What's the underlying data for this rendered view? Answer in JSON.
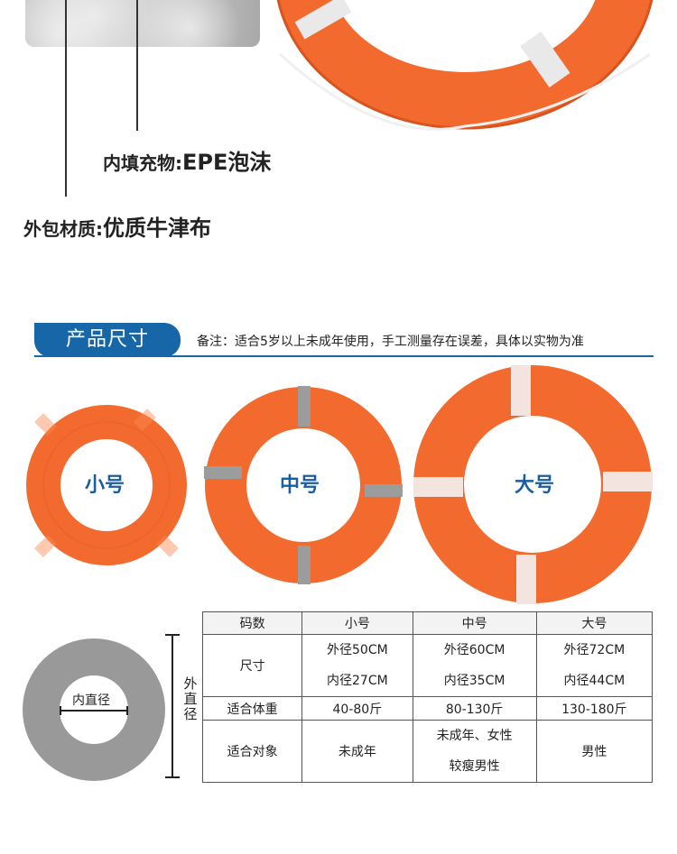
{
  "top": {
    "filler_label": "内填充物:",
    "filler_value": "EPE泡沫",
    "outer_label": "外包材质:",
    "outer_value": "优质牛津布"
  },
  "section": {
    "title": "产品尺寸",
    "note": "备注：适合5岁以上未成年使用，手工测量存在误差，具体以实物为准"
  },
  "rings": [
    {
      "label": "小号"
    },
    {
      "label": "中号"
    },
    {
      "label": "大号"
    }
  ],
  "diagram": {
    "inner_label": "内直径",
    "outer_label": "外直径"
  },
  "table": {
    "headers": [
      "码数",
      "小号",
      "中号",
      "大号"
    ],
    "size_label": "尺寸",
    "outer": [
      "外径50CM",
      "外径60CM",
      "外径72CM"
    ],
    "inner": [
      "内径27CM",
      "内径35CM",
      "内径44CM"
    ],
    "weight_label": "适合体重",
    "weight": [
      "40-80斤",
      "80-130斤",
      "130-180斤"
    ],
    "target_label": "适合对象",
    "target_small": "未成年",
    "target_mid_1": "未成年、女性",
    "target_mid_2": "较瘦男性",
    "target_large": "男性"
  },
  "colors": {
    "ring_orange": "#f26a2e",
    "brand_blue": "#1666a8",
    "label_blue": "#1a5da0"
  }
}
